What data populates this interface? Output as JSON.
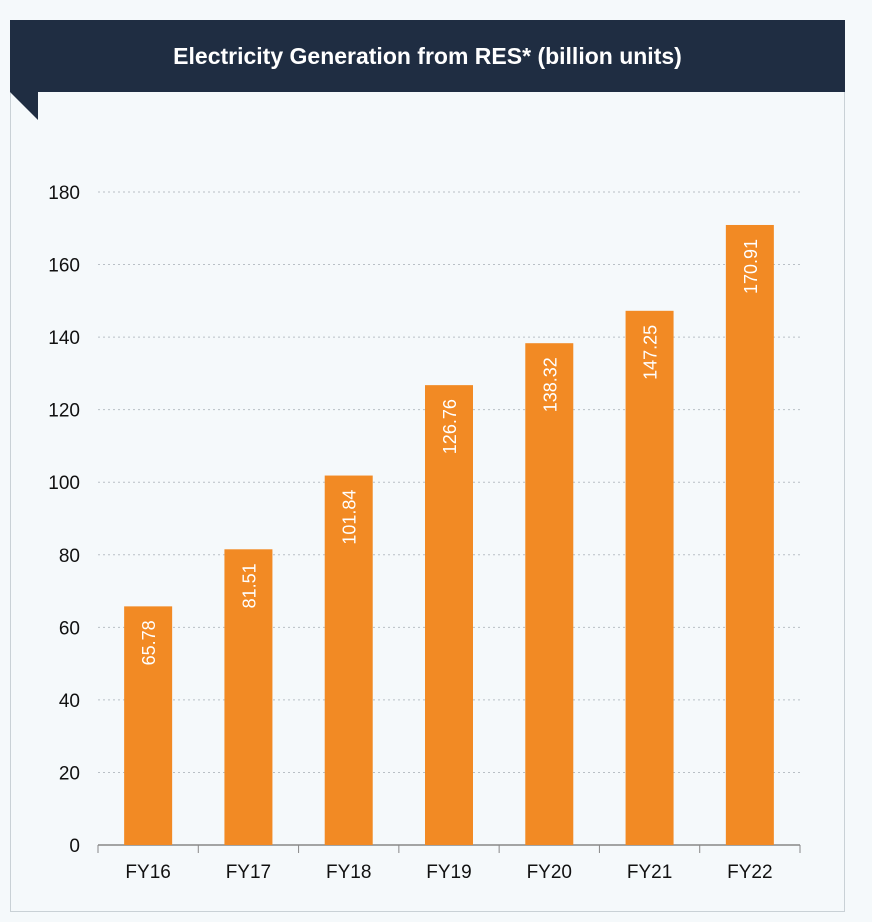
{
  "chart_data": {
    "type": "bar",
    "title": "Electricity Generation from RES* (billion units)",
    "categories": [
      "FY16",
      "FY17",
      "FY18",
      "FY19",
      "FY20",
      "FY21",
      "FY22"
    ],
    "values": [
      65.78,
      81.51,
      101.84,
      126.76,
      138.32,
      147.25,
      170.91
    ],
    "value_labels": [
      "65.78",
      "81.51",
      "101.84",
      "126.76",
      "138.32",
      "147.25",
      "170.91"
    ],
    "yticks": [
      "0",
      "20",
      "40",
      "60",
      "80",
      "100",
      "120",
      "140",
      "160",
      "180"
    ],
    "ylim": [
      0,
      180
    ],
    "xlabel": "",
    "ylabel": "",
    "grid": true,
    "colors": {
      "bar": "#f28a24",
      "header": "#1f2d42",
      "grid": "#b9c0c6",
      "axis": "#888888"
    }
  }
}
